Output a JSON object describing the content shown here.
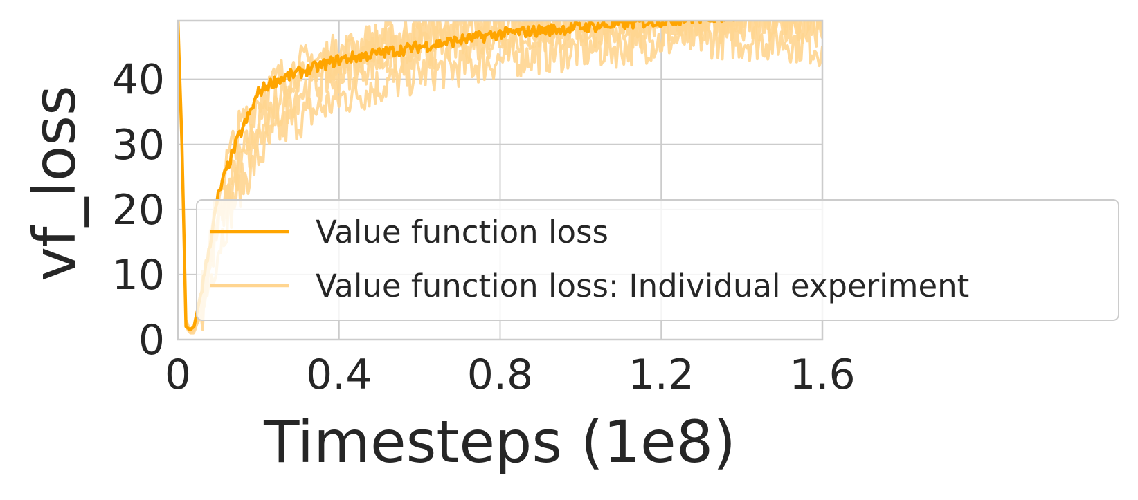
{
  "chart_data": {
    "type": "line",
    "title": "",
    "xlabel": "Timesteps (1e8)",
    "ylabel": "vf_loss",
    "xlim": [
      0,
      1.6
    ],
    "ylim": [
      0,
      49
    ],
    "x_ticks": [
      "0",
      "0.4",
      "0.8",
      "1.2",
      "1.6"
    ],
    "y_ticks": [
      "0",
      "10",
      "20",
      "30",
      "40"
    ],
    "grid": true,
    "legend_position": "lower-right",
    "colors": {
      "mean": "#ffa500",
      "individual": "#ffd590"
    },
    "series": [
      {
        "name": "Value function loss",
        "role": "mean",
        "x": [
          0.0,
          0.01,
          0.02,
          0.03,
          0.04,
          0.06,
          0.08,
          0.1,
          0.12,
          0.15,
          0.18,
          0.2,
          0.22,
          0.25,
          0.3,
          0.35,
          0.4,
          0.5,
          0.6,
          0.7,
          0.8,
          0.9,
          1.0,
          1.1,
          1.2,
          1.3,
          1.4,
          1.5,
          1.6
        ],
        "y": [
          49,
          30,
          2,
          1.5,
          2,
          8,
          15,
          22,
          26,
          31,
          35,
          38,
          39,
          40,
          41,
          42,
          43,
          44,
          45,
          46,
          47,
          47.5,
          48,
          48.5,
          49,
          49.5,
          50,
          50.5,
          51
        ]
      },
      {
        "name": "Value function loss: Individual experiment",
        "role": "individual",
        "x": [
          0.02,
          0.03,
          0.04,
          0.06,
          0.08,
          0.1,
          0.12,
          0.15,
          0.2,
          0.25,
          0.3,
          0.4,
          0.5,
          0.6,
          0.7,
          0.8,
          0.9,
          1.0,
          1.1,
          1.2,
          1.3,
          1.4,
          1.5,
          1.6
        ],
        "y": [
          3,
          1,
          2,
          6,
          12,
          18,
          22,
          27,
          33,
          37,
          40,
          43,
          45,
          46,
          47,
          48,
          48.5,
          49,
          49.5,
          50,
          50,
          50,
          50,
          50
        ]
      },
      {
        "name": "",
        "role": "individual",
        "x": [
          0.02,
          0.03,
          0.04,
          0.06,
          0.08,
          0.1,
          0.12,
          0.15,
          0.2,
          0.25,
          0.3,
          0.4,
          0.5,
          0.6,
          0.7,
          0.8,
          0.9,
          1.0,
          1.1,
          1.2,
          1.3,
          1.4,
          1.5,
          1.6
        ],
        "y": [
          2,
          1,
          1.5,
          4,
          9,
          14,
          18,
          23,
          28,
          32,
          34,
          37,
          39,
          41,
          42,
          43,
          44,
          44.5,
          45,
          46,
          46.5,
          46,
          46,
          45
        ]
      },
      {
        "name": "",
        "role": "individual",
        "x": [
          0.02,
          0.03,
          0.04,
          0.06,
          0.08,
          0.1,
          0.12,
          0.15,
          0.2,
          0.25,
          0.3,
          0.4,
          0.5,
          0.6,
          0.7,
          0.8,
          0.9,
          1.0,
          1.1,
          1.2,
          1.3,
          1.4,
          1.5,
          1.6
        ],
        "y": [
          3,
          1.5,
          2,
          7,
          14,
          22,
          27,
          32,
          37,
          40,
          42,
          44,
          46,
          47,
          48,
          49,
          49.5,
          50,
          50,
          50,
          50,
          50,
          50,
          50
        ]
      },
      {
        "name": "",
        "role": "individual",
        "x": [
          0.02,
          0.03,
          0.04,
          0.06,
          0.08,
          0.1,
          0.12,
          0.15,
          0.2,
          0.25,
          0.3,
          0.4,
          0.5,
          0.6,
          0.7,
          0.8,
          0.9,
          1.0,
          1.1,
          1.2,
          1.3,
          1.4,
          1.5,
          1.6
        ],
        "y": [
          2,
          1,
          1,
          5,
          11,
          17,
          21,
          26,
          31,
          35,
          38,
          41,
          43,
          44.5,
          45.5,
          46.5,
          47,
          47.5,
          48,
          48,
          48.5,
          48,
          48,
          47.5
        ]
      }
    ]
  }
}
